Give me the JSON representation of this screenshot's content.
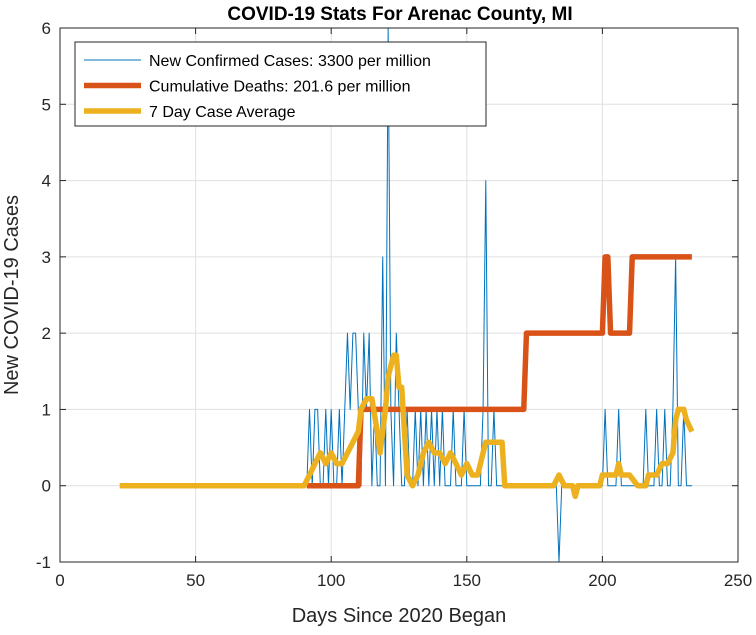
{
  "chart_data": {
    "type": "line",
    "title": "COVID-19 Stats For Arenac County, MI",
    "xlabel": "Days Since 2020 Began",
    "ylabel": "New COVID-19 Cases",
    "xlim": [
      0,
      250
    ],
    "ylim": [
      -1,
      6
    ],
    "xticks": [
      "0",
      "50",
      "100",
      "150",
      "200",
      "250"
    ],
    "yticks": [
      "-1",
      "0",
      "1",
      "2",
      "3",
      "4",
      "5",
      "6"
    ],
    "grid": true,
    "legend_position": "top-left",
    "series": [
      {
        "name": "New Confirmed Cases: 3300 per million",
        "color": "#0072BD",
        "points": [
          [
            91,
            0
          ],
          [
            92,
            1
          ],
          [
            93,
            0
          ],
          [
            94,
            1
          ],
          [
            95,
            1
          ],
          [
            96,
            0
          ],
          [
            97,
            0
          ],
          [
            98,
            1
          ],
          [
            99,
            0
          ],
          [
            100,
            1
          ],
          [
            101,
            0
          ],
          [
            102,
            0
          ],
          [
            103,
            1
          ],
          [
            104,
            0
          ],
          [
            105,
            1
          ],
          [
            106,
            2
          ],
          [
            107,
            1
          ],
          [
            108,
            2
          ],
          [
            109,
            2
          ],
          [
            110,
            1
          ],
          [
            111,
            0
          ],
          [
            112,
            2
          ],
          [
            113,
            1
          ],
          [
            114,
            2
          ],
          [
            115,
            0
          ],
          [
            116,
            1
          ],
          [
            117,
            0
          ],
          [
            118,
            0
          ],
          [
            119,
            3
          ],
          [
            120,
            0
          ],
          [
            121,
            6
          ],
          [
            122,
            1
          ],
          [
            123,
            0
          ],
          [
            124,
            2
          ],
          [
            125,
            1
          ],
          [
            126,
            0
          ],
          [
            127,
            0
          ],
          [
            128,
            1
          ],
          [
            129,
            0
          ],
          [
            130,
            0
          ],
          [
            131,
            1
          ],
          [
            132,
            0
          ],
          [
            133,
            1
          ],
          [
            134,
            0
          ],
          [
            135,
            1
          ],
          [
            136,
            0
          ],
          [
            137,
            1
          ],
          [
            138,
            0
          ],
          [
            139,
            1
          ],
          [
            140,
            0
          ],
          [
            141,
            1
          ],
          [
            142,
            0
          ],
          [
            143,
            0
          ],
          [
            144,
            0
          ],
          [
            145,
            1
          ],
          [
            146,
            0
          ],
          [
            147,
            0
          ],
          [
            148,
            0
          ],
          [
            149,
            1
          ],
          [
            150,
            0
          ],
          [
            151,
            0
          ],
          [
            152,
            0
          ],
          [
            153,
            0
          ],
          [
            154,
            0
          ],
          [
            155,
            0
          ],
          [
            156,
            1
          ],
          [
            157,
            4
          ],
          [
            158,
            0
          ],
          [
            159,
            0
          ],
          [
            160,
            1
          ],
          [
            161,
            0
          ],
          [
            162,
            0
          ],
          [
            163,
            0
          ],
          [
            164,
            0
          ],
          [
            170,
            0
          ],
          [
            180,
            0
          ],
          [
            183,
            0
          ],
          [
            184,
            -1
          ],
          [
            185,
            0
          ],
          [
            190,
            0
          ],
          [
            195,
            0
          ],
          [
            200,
            0
          ],
          [
            201,
            1
          ],
          [
            202,
            0
          ],
          [
            205,
            0
          ],
          [
            206,
            1
          ],
          [
            207,
            0
          ],
          [
            210,
            0
          ],
          [
            215,
            0
          ],
          [
            216,
            1
          ],
          [
            217,
            0
          ],
          [
            219,
            0
          ],
          [
            220,
            1
          ],
          [
            221,
            0
          ],
          [
            222,
            0
          ],
          [
            223,
            1
          ],
          [
            224,
            0
          ],
          [
            225,
            0
          ],
          [
            226,
            1
          ],
          [
            227,
            3
          ],
          [
            228,
            0
          ],
          [
            229,
            0
          ],
          [
            230,
            1
          ],
          [
            231,
            0
          ],
          [
            233,
            0
          ]
        ]
      },
      {
        "name": "Cumulative Deaths: 201.6 per million",
        "color": "#D95319",
        "points": [
          [
            91,
            0
          ],
          [
            110,
            0
          ],
          [
            111,
            1
          ],
          [
            171,
            1
          ],
          [
            172,
            2
          ],
          [
            200,
            2
          ],
          [
            201,
            3
          ],
          [
            202,
            3
          ],
          [
            203,
            2
          ],
          [
            210,
            2
          ],
          [
            211,
            3
          ],
          [
            233,
            3
          ]
        ]
      },
      {
        "name": "7 Day Case Average",
        "color": "#EDB120",
        "points": [
          [
            22,
            0
          ],
          [
            90,
            0
          ],
          [
            92,
            0.14
          ],
          [
            94,
            0.29
          ],
          [
            96,
            0.43
          ],
          [
            98,
            0.29
          ],
          [
            100,
            0.43
          ],
          [
            102,
            0.29
          ],
          [
            104,
            0.29
          ],
          [
            106,
            0.43
          ],
          [
            108,
            0.57
          ],
          [
            110,
            0.71
          ],
          [
            111,
            1
          ],
          [
            113,
            1.14
          ],
          [
            115,
            1.14
          ],
          [
            117,
            0.71
          ],
          [
            118,
            0.43
          ],
          [
            119,
            0.71
          ],
          [
            120,
            1
          ],
          [
            121,
            1.43
          ],
          [
            122,
            1.57
          ],
          [
            123,
            1.71
          ],
          [
            124,
            1.71
          ],
          [
            125,
            1.29
          ],
          [
            126,
            1.29
          ],
          [
            127,
            0.71
          ],
          [
            128,
            0.14
          ],
          [
            130,
            0
          ],
          [
            132,
            0.14
          ],
          [
            134,
            0.43
          ],
          [
            136,
            0.57
          ],
          [
            138,
            0.43
          ],
          [
            140,
            0.43
          ],
          [
            142,
            0.29
          ],
          [
            144,
            0.43
          ],
          [
            146,
            0.29
          ],
          [
            148,
            0.14
          ],
          [
            150,
            0.29
          ],
          [
            152,
            0.14
          ],
          [
            154,
            0.14
          ],
          [
            156,
            0.43
          ],
          [
            157,
            0.57
          ],
          [
            163,
            0.57
          ],
          [
            164,
            0
          ],
          [
            182,
            0
          ],
          [
            184,
            0.14
          ],
          [
            186,
            0
          ],
          [
            188,
            0
          ],
          [
            189,
            0
          ],
          [
            190,
            -0.14
          ],
          [
            191,
            0
          ],
          [
            195,
            0
          ],
          [
            199,
            0
          ],
          [
            200,
            0.14
          ],
          [
            203,
            0.14
          ],
          [
            205,
            0.14
          ],
          [
            206,
            0.29
          ],
          [
            207,
            0.14
          ],
          [
            210,
            0.14
          ],
          [
            213,
            0
          ],
          [
            216,
            0
          ],
          [
            217,
            0.14
          ],
          [
            220,
            0.14
          ],
          [
            222,
            0.29
          ],
          [
            224,
            0.29
          ],
          [
            226,
            0.43
          ],
          [
            227,
            0.86
          ],
          [
            228,
            1
          ],
          [
            229,
            1
          ],
          [
            230,
            1
          ],
          [
            231,
            0.86
          ],
          [
            233,
            0.71
          ]
        ]
      }
    ]
  }
}
